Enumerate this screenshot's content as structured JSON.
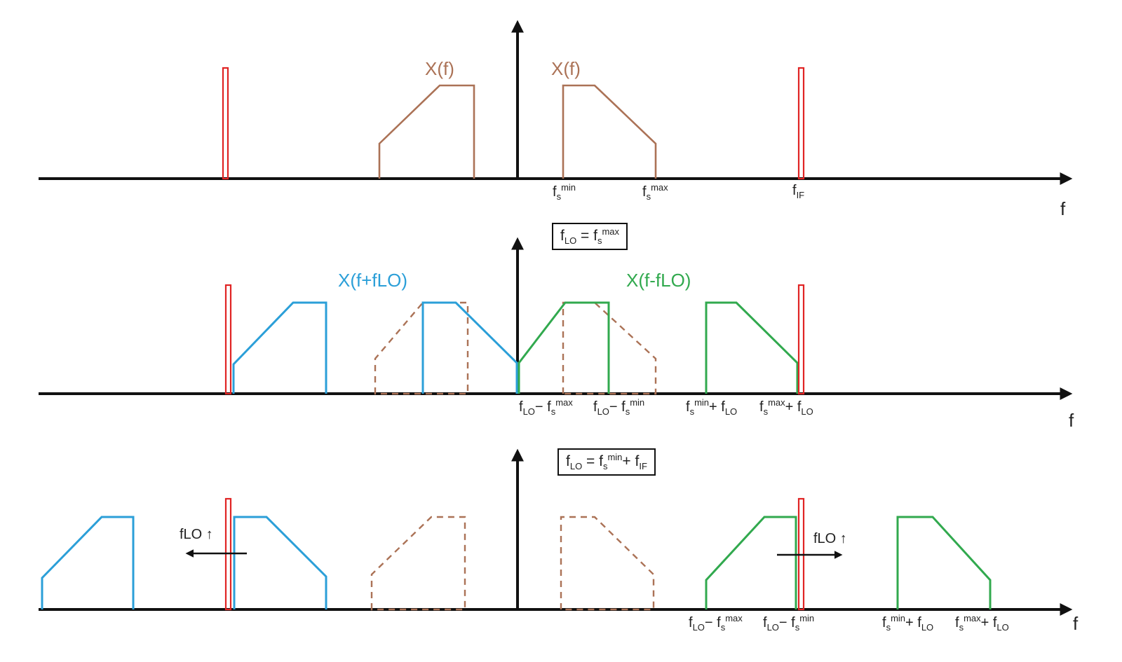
{
  "colors": {
    "spectrum_brown": "#ab7256",
    "shifted_blue": "#2b9fd8",
    "shifted_green": "#31a94e",
    "impulse_red": "#e02424",
    "axis_black": "#111111"
  },
  "row1": {
    "title_left": "X(f)",
    "title_right": "X(f)",
    "fs_min": [
      [
        "f"
      ],
      [
        "s",
        "sub"
      ],
      [
        "min",
        "sup"
      ]
    ],
    "fs_max": [
      [
        "f"
      ],
      [
        "s",
        "sub"
      ],
      [
        "max",
        "sup"
      ]
    ],
    "f_if": [
      [
        "f"
      ],
      [
        "IF",
        "sub"
      ]
    ],
    "axis_f": "f"
  },
  "row2": {
    "equation": [
      [
        "f"
      ],
      [
        "LO",
        "sub"
      ],
      [
        " = f"
      ],
      [
        "s",
        "sub"
      ],
      [
        "max",
        "sup"
      ]
    ],
    "title_left": "X(f+fLO)",
    "title_right": "X(f-fLO)",
    "flo_minus_fs_max": [
      [
        "f"
      ],
      [
        "LO",
        "sub"
      ],
      [
        "− f"
      ],
      [
        "s",
        "sub"
      ],
      [
        "max",
        "sup"
      ]
    ],
    "flo_minus_fs_min": [
      [
        "f"
      ],
      [
        "LO",
        "sub"
      ],
      [
        "− f"
      ],
      [
        "s",
        "sub"
      ],
      [
        "min",
        "sup"
      ]
    ],
    "fs_min_plus_flo": [
      [
        "f"
      ],
      [
        "s",
        "sub"
      ],
      [
        "min",
        "sup"
      ],
      [
        "+ f"
      ],
      [
        "LO",
        "sub"
      ]
    ],
    "fs_max_plus_flo": [
      [
        "f"
      ],
      [
        "s",
        "sub"
      ],
      [
        "max",
        "sup"
      ],
      [
        "+ f"
      ],
      [
        "LO",
        "sub"
      ]
    ],
    "axis_f": "f"
  },
  "row3": {
    "equation": [
      [
        "f"
      ],
      [
        "LO",
        "sub"
      ],
      [
        " = f"
      ],
      [
        "s",
        "sub"
      ],
      [
        "min",
        "sup"
      ],
      [
        "+ f"
      ],
      [
        "IF",
        "sub"
      ]
    ],
    "arrow_left_label": "fLO ↑",
    "arrow_right_label": "fLO ↑",
    "flo_minus_fs_max": [
      [
        "f"
      ],
      [
        "LO",
        "sub"
      ],
      [
        "− f"
      ],
      [
        "s",
        "sub"
      ],
      [
        "max",
        "sup"
      ]
    ],
    "flo_minus_fs_min": [
      [
        "f"
      ],
      [
        "LO",
        "sub"
      ],
      [
        "− f"
      ],
      [
        "s",
        "sub"
      ],
      [
        "min",
        "sup"
      ]
    ],
    "fs_min_plus_flo": [
      [
        "f"
      ],
      [
        "s",
        "sub"
      ],
      [
        "min",
        "sup"
      ],
      [
        "+ f"
      ],
      [
        "LO",
        "sub"
      ]
    ],
    "fs_max_plus_flo": [
      [
        "f"
      ],
      [
        "s",
        "sub"
      ],
      [
        "max",
        "sup"
      ],
      [
        "+ f"
      ],
      [
        "LO",
        "sub"
      ]
    ],
    "axis_f": "f"
  }
}
